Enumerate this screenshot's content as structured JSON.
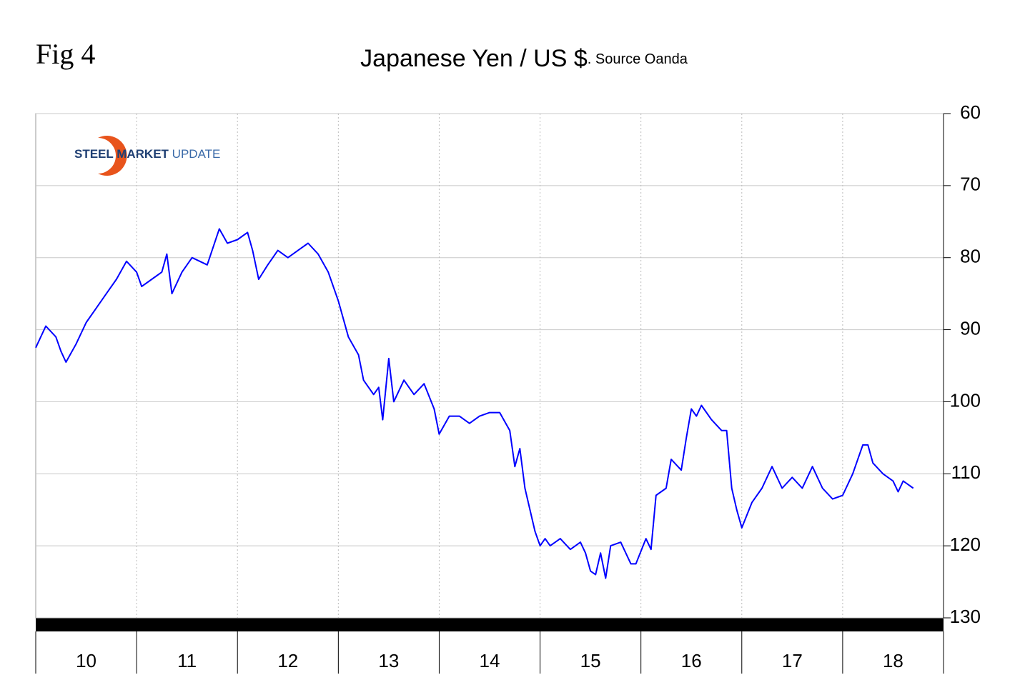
{
  "fig_label": "Fig 4",
  "logo": [
    "STEEL",
    "MARKET",
    "UPDATE"
  ],
  "chart_data": {
    "type": "line",
    "title": "Japanese Yen / US $",
    "subtitle": ". Source Oanda",
    "categories": [
      "10",
      "11",
      "12",
      "13",
      "14",
      "15",
      "16",
      "17",
      "18"
    ],
    "xlim": [
      10,
      19
    ],
    "xticks": [
      11,
      12,
      13,
      14,
      15,
      16,
      17,
      18
    ],
    "ylim": [
      60,
      130
    ],
    "y_inverted": true,
    "yticks": [
      60,
      70,
      80,
      90,
      100,
      110,
      120,
      130
    ],
    "grid": true,
    "x": [
      10.0,
      10.1,
      10.2,
      10.25,
      10.3,
      10.4,
      10.5,
      10.6,
      10.7,
      10.8,
      10.9,
      11.0,
      11.05,
      11.15,
      11.25,
      11.3,
      11.35,
      11.45,
      11.55,
      11.7,
      11.82,
      11.9,
      12.0,
      12.1,
      12.15,
      12.21,
      12.3,
      12.4,
      12.5,
      12.6,
      12.7,
      12.8,
      12.9,
      13.0,
      13.1,
      13.2,
      13.25,
      13.35,
      13.4,
      13.44,
      13.5,
      13.55,
      13.65,
      13.75,
      13.85,
      13.95,
      14.0,
      14.1,
      14.2,
      14.3,
      14.4,
      14.5,
      14.6,
      14.7,
      14.75,
      14.8,
      14.85,
      14.95,
      15.0,
      15.05,
      15.1,
      15.2,
      15.3,
      15.4,
      15.45,
      15.5,
      15.55,
      15.6,
      15.65,
      15.7,
      15.8,
      15.9,
      15.95,
      16.05,
      16.1,
      16.15,
      16.25,
      16.3,
      16.4,
      16.45,
      16.5,
      16.55,
      16.6,
      16.7,
      16.8,
      16.85,
      16.9,
      16.95,
      17.0,
      17.1,
      17.2,
      17.3,
      17.4,
      17.5,
      17.6,
      17.7,
      17.8,
      17.9,
      18.0,
      18.1,
      18.2,
      18.25,
      18.3,
      18.4,
      18.5,
      18.55,
      18.6,
      18.7
    ],
    "series": [
      {
        "color": "#0000ff",
        "values": [
          92.5,
          89.5,
          91,
          93,
          94.5,
          92,
          89,
          87,
          85,
          83,
          80.5,
          82,
          84,
          83,
          82,
          79.5,
          85,
          82,
          80,
          81,
          76,
          78,
          77.5,
          76.5,
          79,
          83,
          81,
          79,
          80,
          79,
          78,
          79.5,
          82,
          86,
          91,
          93.5,
          97,
          99,
          98,
          102.5,
          94,
          100,
          97,
          99,
          97.5,
          101,
          104.5,
          102,
          102,
          103,
          102,
          101.5,
          101.5,
          104,
          109,
          106.5,
          112,
          118,
          120,
          119,
          120,
          119,
          120.5,
          119.5,
          121,
          123.5,
          124,
          121,
          124.5,
          120,
          119.5,
          122.5,
          122.5,
          119,
          120.5,
          113,
          112,
          108,
          109.5,
          105,
          101,
          102,
          100.5,
          102.5,
          104,
          104,
          112,
          115,
          117.5,
          114,
          112,
          109,
          112,
          110.5,
          112,
          109,
          112,
          113.5,
          113,
          110,
          106,
          106,
          108.5,
          110,
          111,
          112.5,
          111,
          112
        ]
      }
    ]
  }
}
